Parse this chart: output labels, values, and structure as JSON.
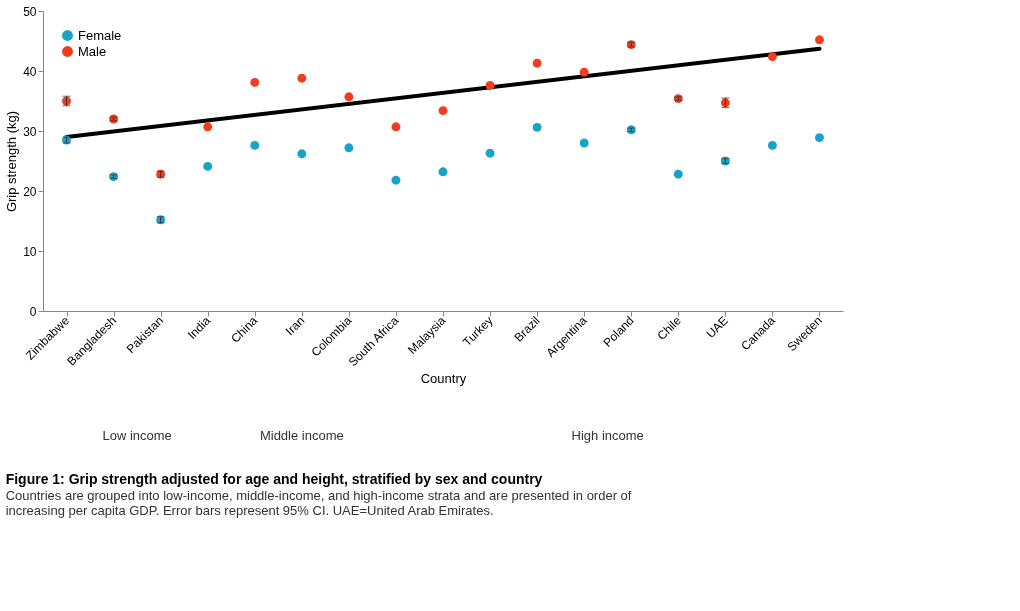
{
  "chart_data": {
    "type": "scatter",
    "title": "Figure 1: Grip strength adjusted for age and height, stratified by sex and country",
    "subtitle": "Countries are grouped into low-income, middle-income, and high-income strata and are presented in order of increasing per capita GDP. Error bars represent 95% CI. UAE=United Arab Emirates.",
    "xlabel": "Country",
    "ylabel": "Grip strength (kg)",
    "categories": [
      "Zimbabwe",
      "Bangladesh",
      "Pakistan",
      "India",
      "China",
      "Iran",
      "Colombia",
      "South Africa",
      "Malaysia",
      "Turkey",
      "Brazil",
      "Argentina",
      "Poland",
      "Chile",
      "UAE",
      "Canada",
      "Sweden"
    ],
    "series": [
      {
        "name": "Female",
        "color": "#1aa3c8",
        "values": [
          28.5,
          22.4,
          15.2,
          24.1,
          27.6,
          26.2,
          27.2,
          21.8,
          23.2,
          26.3,
          30.6,
          28.0,
          30.2,
          22.8,
          25.0,
          27.6,
          28.9
        ],
        "errors": [
          0.5,
          0.3,
          0.5,
          null,
          null,
          null,
          null,
          null,
          null,
          null,
          null,
          null,
          0.3,
          null,
          0.4,
          null,
          null
        ]
      },
      {
        "name": "Male",
        "color": "#f23c1e",
        "values": [
          35.0,
          32.0,
          22.8,
          30.7,
          38.1,
          38.8,
          35.7,
          30.7,
          33.4,
          37.6,
          41.3,
          39.8,
          44.4,
          35.4,
          34.7,
          42.4,
          45.2
        ],
        "errors": [
          0.8,
          0.3,
          0.5,
          null,
          null,
          null,
          null,
          null,
          null,
          null,
          null,
          null,
          0.4,
          0.3,
          0.8,
          null,
          null
        ]
      },
      {
        "type": "line",
        "marker": "none",
        "color": "#000000",
        "x": [
          "Zimbabwe",
          "Sweden"
        ],
        "values": [
          29.0,
          43.7
        ]
      }
    ],
    "ylim": [
      0,
      50
    ],
    "yticks": [
      0,
      10,
      20,
      30,
      40,
      50
    ],
    "annotations": [
      "Low income",
      "Middle income",
      "High income"
    ],
    "legend": "top left",
    "marker": "circle",
    "grid": false
  }
}
